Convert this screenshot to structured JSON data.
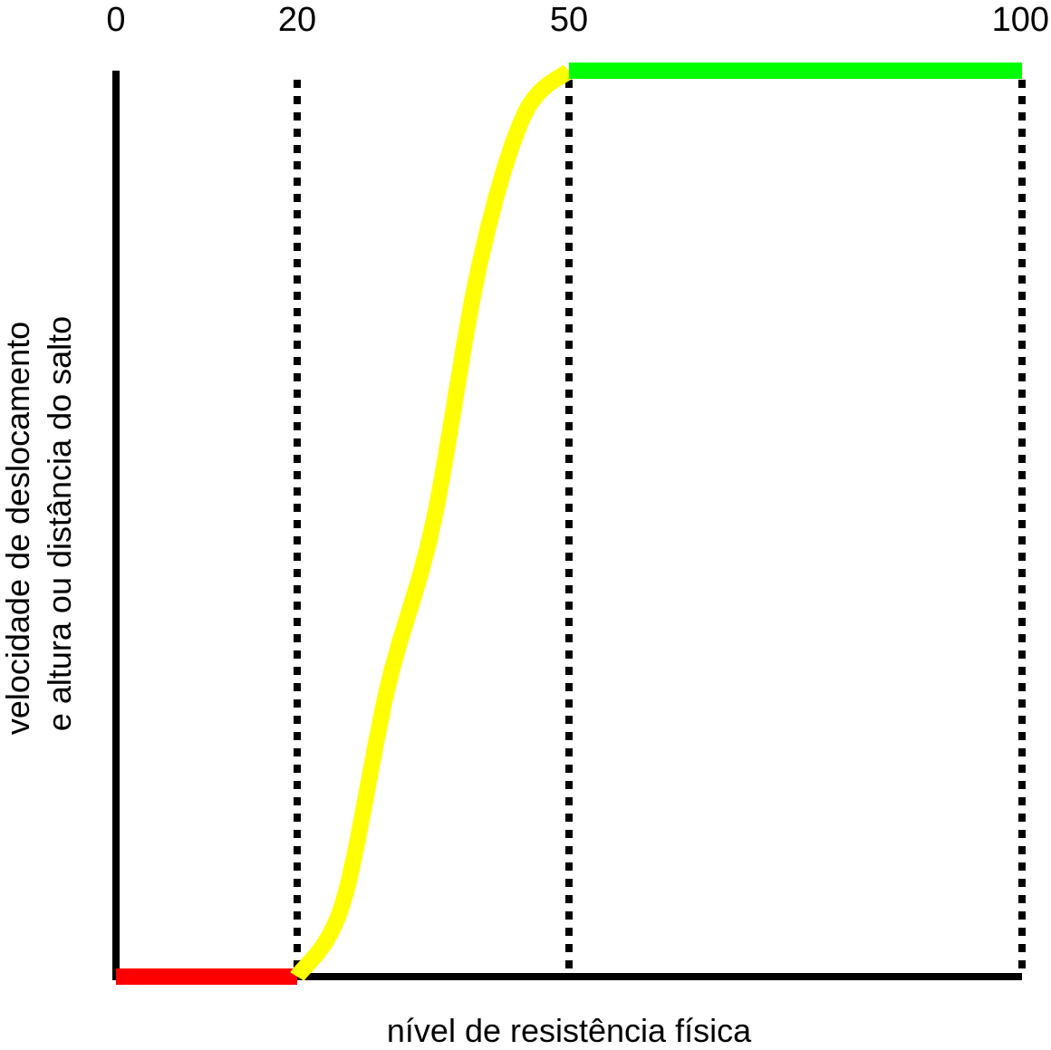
{
  "chart_data": {
    "type": "line",
    "xlabel": "nível de resistência física",
    "ylabel_lines": [
      "velocidade de deslocamento",
      "e altura ou distância do salto"
    ],
    "x_ticks": [
      {
        "value": 0,
        "label": "0"
      },
      {
        "value": 20,
        "label": "20"
      },
      {
        "value": 50,
        "label": "50"
      },
      {
        "value": 100,
        "label": "100"
      }
    ],
    "xlim": [
      0,
      100
    ],
    "ylim": [
      0,
      1
    ],
    "grid": false,
    "reference_lines_x": [
      20,
      50,
      100
    ],
    "segments": [
      {
        "color": "#ff0000",
        "points": [
          [
            0,
            0
          ],
          [
            20,
            0
          ]
        ]
      },
      {
        "color": "#ffff00",
        "points": [
          [
            20,
            0
          ],
          [
            25,
            0.08
          ],
          [
            30,
            0.32
          ],
          [
            35,
            0.5
          ],
          [
            40,
            0.78
          ],
          [
            45,
            0.95
          ],
          [
            50,
            1
          ]
        ]
      },
      {
        "color": "#00ff00",
        "points": [
          [
            50,
            1
          ],
          [
            100,
            1
          ]
        ]
      }
    ]
  }
}
